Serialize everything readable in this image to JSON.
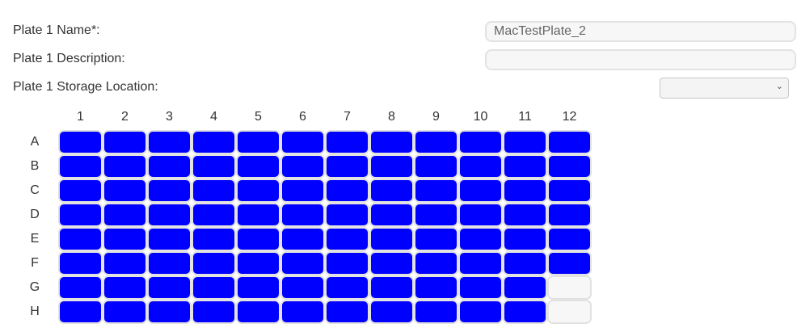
{
  "form": {
    "name_label": "Plate 1 Name*:",
    "name_value": "MacTestPlate_2",
    "description_label": "Plate 1 Description:",
    "description_value": "",
    "storage_label": "Plate 1 Storage Location:",
    "storage_value": ""
  },
  "plate": {
    "columns": [
      "1",
      "2",
      "3",
      "4",
      "5",
      "6",
      "7",
      "8",
      "9",
      "10",
      "11",
      "12"
    ],
    "rows": [
      "A",
      "B",
      "C",
      "D",
      "E",
      "F",
      "G",
      "H"
    ],
    "empty_wells": [
      "G12",
      "H12"
    ],
    "filled_color": "#0000ff",
    "empty_color": "#f7f7f7"
  }
}
